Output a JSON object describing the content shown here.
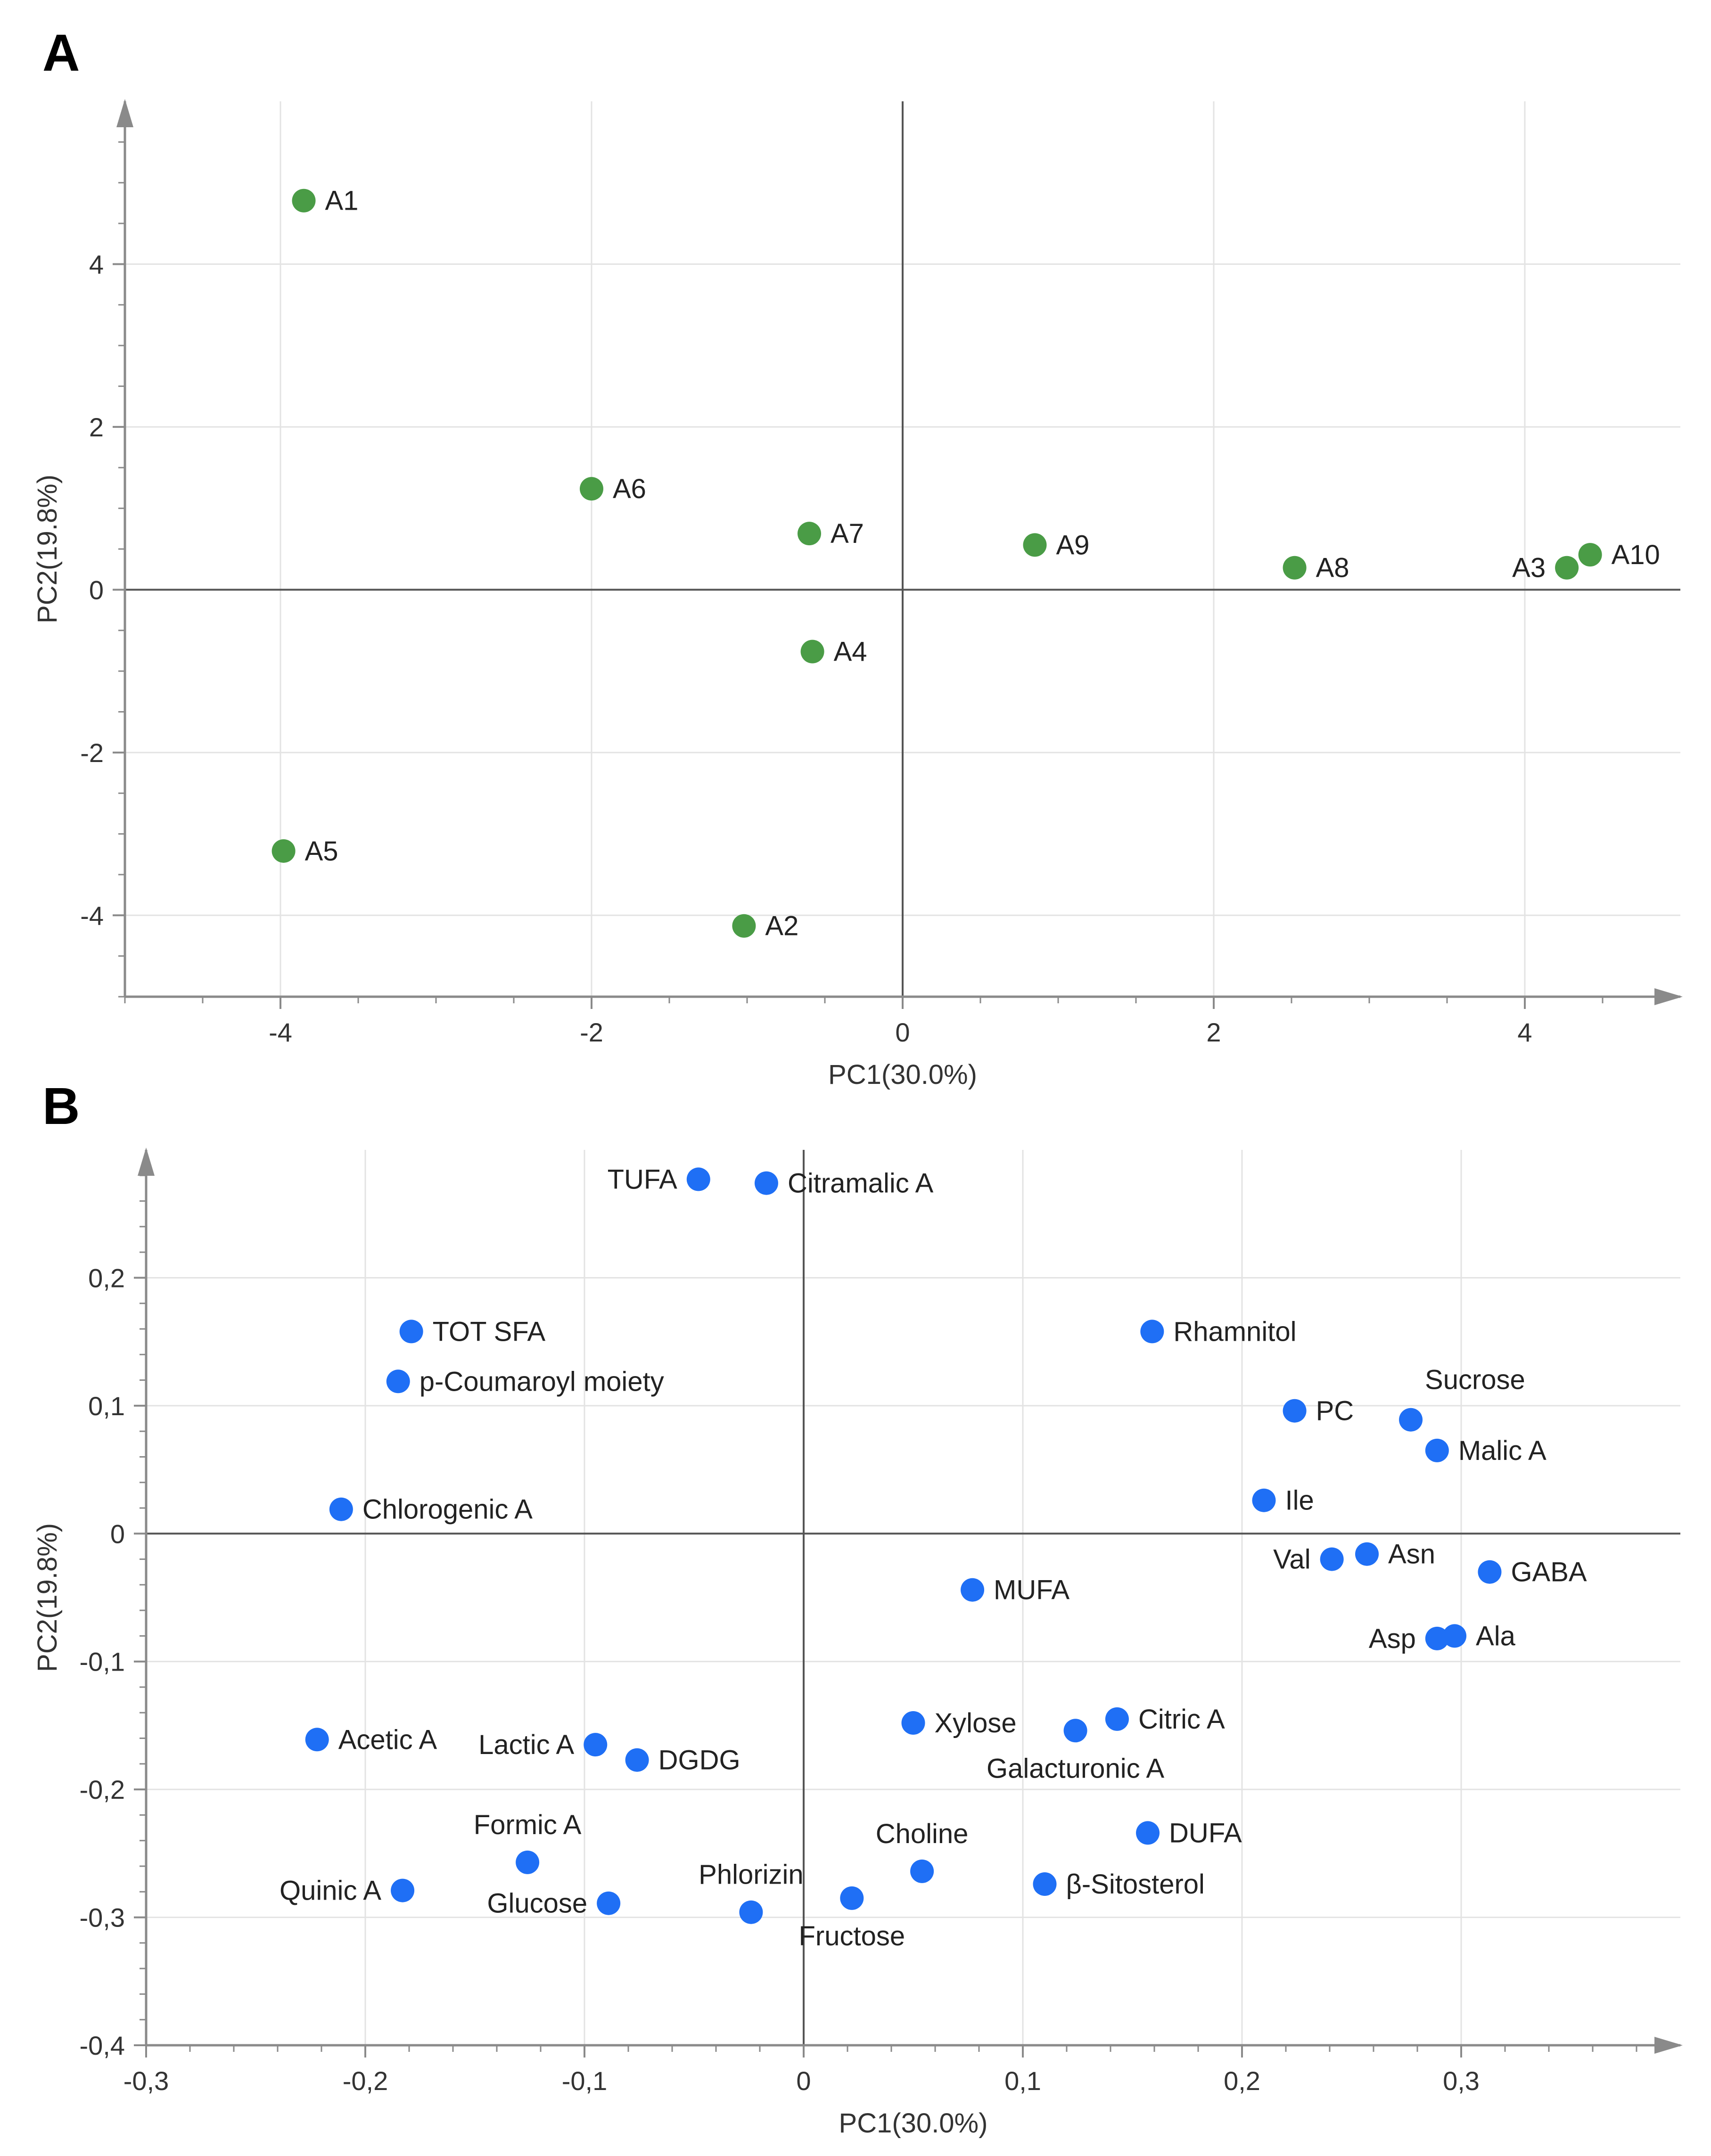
{
  "chart_data": [
    {
      "type": "scatter",
      "panel": "A",
      "xlabel": "PC1(30.0%)",
      "ylabel": "PC2(19.8%)",
      "xlim": [
        -5,
        5
      ],
      "ylim": [
        -5,
        6
      ],
      "xticks": [
        -4,
        -2,
        0,
        2,
        4
      ],
      "yticks": [
        -4,
        -2,
        0,
        2,
        4
      ],
      "xtick_labels": [
        "-4",
        "-2",
        "0",
        "2",
        "4"
      ],
      "ytick_labels": [
        "-4",
        "-2",
        "0",
        "2",
        "4"
      ],
      "grid": true,
      "marker_color": "#4a9c46",
      "points": [
        {
          "label": "A1",
          "x": -3.85,
          "y": 4.78,
          "pos": "right"
        },
        {
          "label": "A6",
          "x": -2.0,
          "y": 1.24,
          "pos": "right"
        },
        {
          "label": "A7",
          "x": -0.6,
          "y": 0.69,
          "pos": "right"
        },
        {
          "label": "A9",
          "x": 0.85,
          "y": 0.55,
          "pos": "right"
        },
        {
          "label": "A8",
          "x": 2.52,
          "y": 0.27,
          "pos": "right"
        },
        {
          "label": "A3",
          "x": 4.27,
          "y": 0.27,
          "pos": "left"
        },
        {
          "label": "A10",
          "x": 4.42,
          "y": 0.43,
          "pos": "right"
        },
        {
          "label": "A4",
          "x": -0.58,
          "y": -0.76,
          "pos": "right"
        },
        {
          "label": "A5",
          "x": -3.98,
          "y": -3.21,
          "pos": "right"
        },
        {
          "label": "A2",
          "x": -1.02,
          "y": -4.13,
          "pos": "right"
        }
      ]
    },
    {
      "type": "scatter",
      "panel": "B",
      "xlabel": "PC1(30.0%)",
      "ylabel": "PC2(19.8%)",
      "xlim": [
        -0.3,
        0.4
      ],
      "ylim": [
        -0.4,
        0.3
      ],
      "xticks": [
        -0.3,
        -0.2,
        -0.1,
        0,
        0.1,
        0.2,
        0.3
      ],
      "yticks": [
        -0.4,
        -0.3,
        -0.2,
        -0.1,
        0,
        0.1,
        0.2
      ],
      "xtick_labels": [
        "-0,3",
        "-0,2",
        "-0,1",
        "0",
        "0,1",
        "0,2",
        "0,3"
      ],
      "ytick_labels": [
        "-0,4",
        "-0,3",
        "-0,2",
        "-0,1",
        "0",
        "0,1",
        "0,2"
      ],
      "grid": true,
      "marker_color": "#1f6ff5",
      "points": [
        {
          "label": "TUFA",
          "x": -0.048,
          "y": 0.277,
          "pos": "left"
        },
        {
          "label": "Citramalic A",
          "x": -0.017,
          "y": 0.274,
          "pos": "right"
        },
        {
          "label": "TOT SFA",
          "x": -0.179,
          "y": 0.158,
          "pos": "right"
        },
        {
          "label": "p-Coumaroyl moiety",
          "x": -0.185,
          "y": 0.119,
          "pos": "right"
        },
        {
          "label": "Rhamnitol",
          "x": 0.159,
          "y": 0.158,
          "pos": "right"
        },
        {
          "label": "Sucrose",
          "x": 0.277,
          "y": 0.089,
          "pos": "above-right"
        },
        {
          "label": "PC",
          "x": 0.224,
          "y": 0.096,
          "pos": "right"
        },
        {
          "label": "Malic A",
          "x": 0.289,
          "y": 0.065,
          "pos": "right"
        },
        {
          "label": "Chlorogenic A",
          "x": -0.211,
          "y": 0.019,
          "pos": "right"
        },
        {
          "label": "Ile",
          "x": 0.21,
          "y": 0.026,
          "pos": "right"
        },
        {
          "label": "Val",
          "x": 0.241,
          "y": -0.02,
          "pos": "left"
        },
        {
          "label": "Asn",
          "x": 0.257,
          "y": -0.016,
          "pos": "right"
        },
        {
          "label": "GABA",
          "x": 0.313,
          "y": -0.03,
          "pos": "right"
        },
        {
          "label": "MUFA",
          "x": 0.077,
          "y": -0.044,
          "pos": "right"
        },
        {
          "label": "Asp",
          "x": 0.289,
          "y": -0.082,
          "pos": "left"
        },
        {
          "label": "Ala",
          "x": 0.297,
          "y": -0.08,
          "pos": "right"
        },
        {
          "label": "Acetic A",
          "x": -0.222,
          "y": -0.161,
          "pos": "right"
        },
        {
          "label": "Lactic A",
          "x": -0.095,
          "y": -0.165,
          "pos": "left"
        },
        {
          "label": "DGDG",
          "x": -0.076,
          "y": -0.177,
          "pos": "right"
        },
        {
          "label": "Xylose",
          "x": 0.05,
          "y": -0.148,
          "pos": "right"
        },
        {
          "label": "Citric A",
          "x": 0.143,
          "y": -0.145,
          "pos": "right"
        },
        {
          "label": "Galacturonic A",
          "x": 0.124,
          "y": -0.154,
          "pos": "below"
        },
        {
          "label": "Formic A",
          "x": -0.126,
          "y": -0.257,
          "pos": "above"
        },
        {
          "label": "Choline",
          "x": 0.054,
          "y": -0.264,
          "pos": "above"
        },
        {
          "label": "DUFA",
          "x": 0.157,
          "y": -0.234,
          "pos": "right"
        },
        {
          "label": "β-Sitosterol",
          "x": 0.11,
          "y": -0.274,
          "pos": "right"
        },
        {
          "label": "Quinic A",
          "x": -0.183,
          "y": -0.279,
          "pos": "left"
        },
        {
          "label": "Glucose",
          "x": -0.089,
          "y": -0.289,
          "pos": "left"
        },
        {
          "label": "Phlorizin",
          "x": -0.024,
          "y": -0.296,
          "pos": "above"
        },
        {
          "label": "Fructose",
          "x": 0.022,
          "y": -0.285,
          "pos": "below"
        }
      ]
    }
  ]
}
